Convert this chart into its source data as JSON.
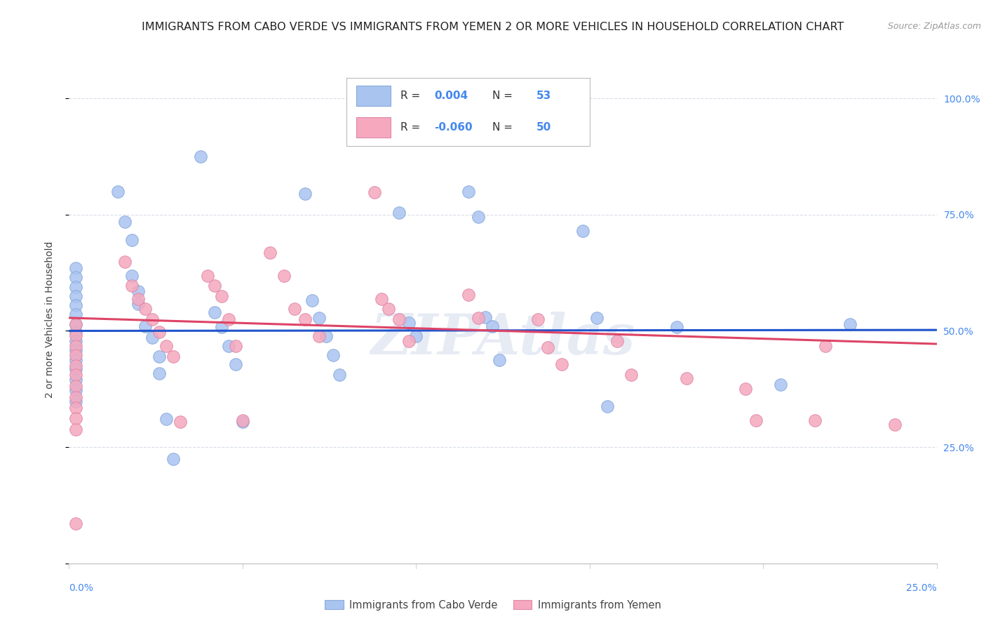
{
  "title": "IMMIGRANTS FROM CABO VERDE VS IMMIGRANTS FROM YEMEN 2 OR MORE VEHICLES IN HOUSEHOLD CORRELATION CHART",
  "source": "Source: ZipAtlas.com",
  "ylabel": "2 or more Vehicles in Household",
  "xlim": [
    0.0,
    0.25
  ],
  "ylim": [
    0.0,
    1.05
  ],
  "ytick_values": [
    0.0,
    0.25,
    0.5,
    0.75,
    1.0
  ],
  "ytick_labels": [
    "",
    "25.0%",
    "50.0%",
    "75.0%",
    "100.0%"
  ],
  "xtick_left_label": "0.0%",
  "xtick_right_label": "25.0%",
  "cabo_verde_R": 0.004,
  "cabo_verde_N": 53,
  "yemen_R": -0.06,
  "yemen_N": 50,
  "cabo_verde_color": "#aac4f0",
  "cabo_verde_edge": "#88aadd",
  "yemen_color": "#f5a8be",
  "yemen_edge": "#e088a8",
  "cabo_verde_line_color": "#2255cc",
  "yemen_line_color": "#dd4466",
  "cabo_verde_line_style": "solid",
  "yemen_line_style": "solid",
  "cabo_verde_scatter": [
    [
      0.002,
      0.635
    ],
    [
      0.002,
      0.615
    ],
    [
      0.002,
      0.595
    ],
    [
      0.002,
      0.575
    ],
    [
      0.002,
      0.555
    ],
    [
      0.002,
      0.535
    ],
    [
      0.002,
      0.515
    ],
    [
      0.002,
      0.497
    ],
    [
      0.002,
      0.478
    ],
    [
      0.002,
      0.458
    ],
    [
      0.002,
      0.438
    ],
    [
      0.002,
      0.418
    ],
    [
      0.002,
      0.395
    ],
    [
      0.002,
      0.372
    ],
    [
      0.002,
      0.348
    ],
    [
      0.014,
      0.8
    ],
    [
      0.016,
      0.735
    ],
    [
      0.018,
      0.695
    ],
    [
      0.018,
      0.618
    ],
    [
      0.02,
      0.585
    ],
    [
      0.02,
      0.558
    ],
    [
      0.022,
      0.51
    ],
    [
      0.024,
      0.485
    ],
    [
      0.026,
      0.445
    ],
    [
      0.026,
      0.408
    ],
    [
      0.028,
      0.31
    ],
    [
      0.03,
      0.225
    ],
    [
      0.038,
      0.875
    ],
    [
      0.042,
      0.54
    ],
    [
      0.044,
      0.508
    ],
    [
      0.046,
      0.468
    ],
    [
      0.048,
      0.428
    ],
    [
      0.05,
      0.305
    ],
    [
      0.068,
      0.795
    ],
    [
      0.07,
      0.565
    ],
    [
      0.072,
      0.528
    ],
    [
      0.074,
      0.488
    ],
    [
      0.076,
      0.448
    ],
    [
      0.078,
      0.405
    ],
    [
      0.095,
      0.755
    ],
    [
      0.098,
      0.518
    ],
    [
      0.1,
      0.488
    ],
    [
      0.115,
      0.8
    ],
    [
      0.118,
      0.745
    ],
    [
      0.12,
      0.53
    ],
    [
      0.122,
      0.51
    ],
    [
      0.124,
      0.438
    ],
    [
      0.148,
      0.715
    ],
    [
      0.152,
      0.528
    ],
    [
      0.155,
      0.338
    ],
    [
      0.175,
      0.508
    ],
    [
      0.205,
      0.385
    ],
    [
      0.225,
      0.515
    ]
  ],
  "yemen_scatter": [
    [
      0.002,
      0.085
    ],
    [
      0.002,
      0.515
    ],
    [
      0.002,
      0.49
    ],
    [
      0.002,
      0.468
    ],
    [
      0.002,
      0.448
    ],
    [
      0.002,
      0.425
    ],
    [
      0.002,
      0.405
    ],
    [
      0.002,
      0.382
    ],
    [
      0.002,
      0.358
    ],
    [
      0.002,
      0.335
    ],
    [
      0.002,
      0.312
    ],
    [
      0.002,
      0.288
    ],
    [
      0.016,
      0.648
    ],
    [
      0.018,
      0.598
    ],
    [
      0.02,
      0.568
    ],
    [
      0.022,
      0.548
    ],
    [
      0.024,
      0.525
    ],
    [
      0.026,
      0.498
    ],
    [
      0.028,
      0.468
    ],
    [
      0.03,
      0.445
    ],
    [
      0.032,
      0.305
    ],
    [
      0.04,
      0.618
    ],
    [
      0.042,
      0.598
    ],
    [
      0.044,
      0.575
    ],
    [
      0.046,
      0.525
    ],
    [
      0.048,
      0.468
    ],
    [
      0.05,
      0.308
    ],
    [
      0.058,
      0.668
    ],
    [
      0.062,
      0.618
    ],
    [
      0.065,
      0.548
    ],
    [
      0.068,
      0.525
    ],
    [
      0.072,
      0.488
    ],
    [
      0.088,
      0.798
    ],
    [
      0.09,
      0.568
    ],
    [
      0.092,
      0.548
    ],
    [
      0.095,
      0.525
    ],
    [
      0.098,
      0.478
    ],
    [
      0.115,
      0.578
    ],
    [
      0.118,
      0.528
    ],
    [
      0.135,
      0.525
    ],
    [
      0.138,
      0.465
    ],
    [
      0.142,
      0.428
    ],
    [
      0.158,
      0.478
    ],
    [
      0.162,
      0.405
    ],
    [
      0.178,
      0.398
    ],
    [
      0.195,
      0.375
    ],
    [
      0.198,
      0.308
    ],
    [
      0.215,
      0.308
    ],
    [
      0.218,
      0.468
    ],
    [
      0.238,
      0.298
    ]
  ],
  "watermark": "ZIPAtlas",
  "background_color": "#ffffff",
  "grid_color": "#d8dde8",
  "title_fontsize": 11.5,
  "axis_label_fontsize": 10,
  "tick_fontsize": 10,
  "legend_fontsize": 12
}
